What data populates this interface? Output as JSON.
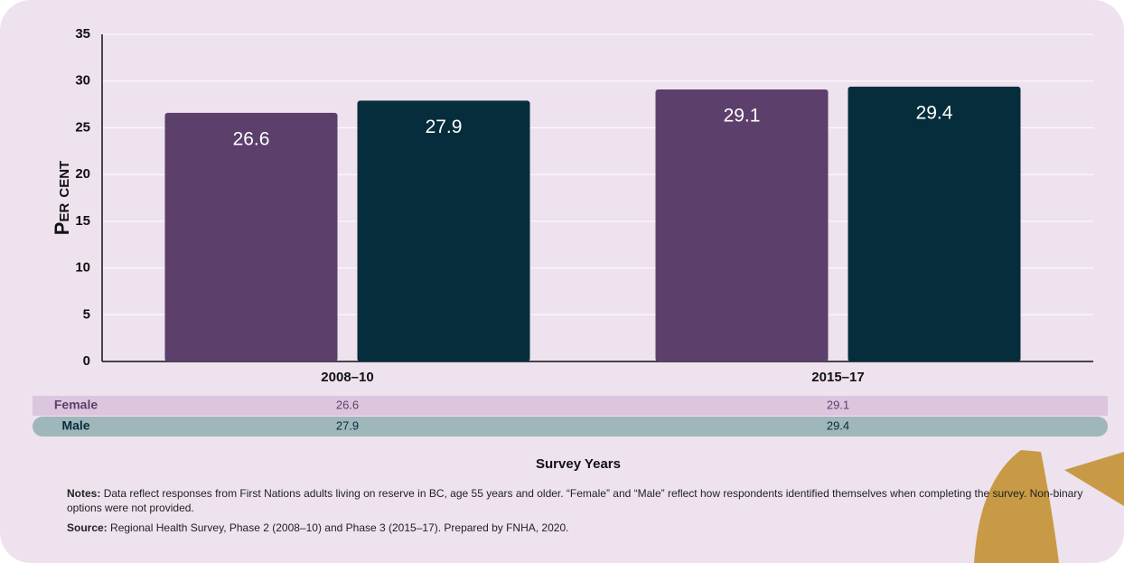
{
  "chart_data": {
    "type": "bar",
    "categories": [
      "2008–10",
      "2015–17"
    ],
    "series": [
      {
        "name": "Female",
        "color": "#5c3f6b",
        "values": [
          26.6,
          29.1
        ]
      },
      {
        "name": "Male",
        "color": "#062d3c",
        "values": [
          27.9,
          29.4
        ]
      }
    ],
    "y_label": "Per cent",
    "x_label": "Survey Years",
    "ylim": [
      0,
      35
    ],
    "yticks": [
      0,
      5,
      10,
      15,
      20,
      25,
      30,
      35
    ],
    "grid": true,
    "notes": {
      "label": "Notes:",
      "text": "Data reflect responses from First Nations adults living on reserve in BC, age 55 years and older. “Female” and “Male” reflect how respondents identified themselves when completing the survey. Non-binary options were not provided."
    },
    "source": {
      "label": "Source:",
      "text": "Regional Health Survey, Phase 2 (2008–10) and Phase 3 (2015–17). Prepared by FNHA, 2020."
    }
  }
}
